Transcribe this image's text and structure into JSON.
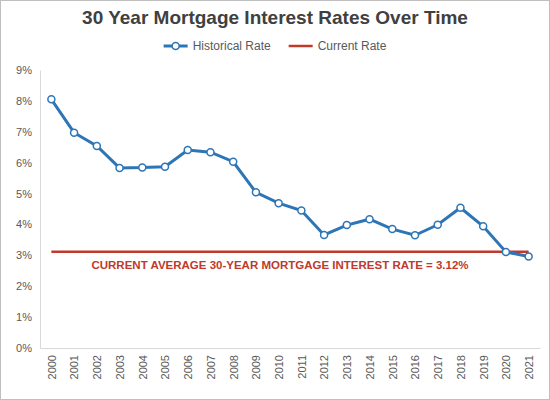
{
  "chart_data": {
    "type": "line",
    "title": "30 Year Mortgage Interest Rates Over Time",
    "categories": [
      "2000",
      "2001",
      "2002",
      "2003",
      "2004",
      "2005",
      "2006",
      "2007",
      "2008",
      "2009",
      "2010",
      "2011",
      "2012",
      "2013",
      "2014",
      "2015",
      "2016",
      "2017",
      "2018",
      "2019",
      "2020",
      "2021"
    ],
    "series": [
      {
        "name": "Historical Rate",
        "color": "#2e75b6",
        "marker": "circle",
        "line_style": "solid",
        "values": [
          8.05,
          6.97,
          6.54,
          5.83,
          5.84,
          5.87,
          6.41,
          6.34,
          6.03,
          5.04,
          4.69,
          4.45,
          3.66,
          3.98,
          4.17,
          3.85,
          3.65,
          3.99,
          4.54,
          3.94,
          3.11,
          2.96
        ]
      },
      {
        "name": "Current Rate",
        "color": "#c0392b",
        "marker": "none",
        "line_style": "solid",
        "values": [
          3.12,
          3.12,
          3.12,
          3.12,
          3.12,
          3.12,
          3.12,
          3.12,
          3.12,
          3.12,
          3.12,
          3.12,
          3.12,
          3.12,
          3.12,
          3.12,
          3.12,
          3.12,
          3.12,
          3.12,
          3.12,
          3.12
        ]
      }
    ],
    "annotation": "CURRENT AVERAGE 30-YEAR MORTGAGE INTEREST RATE = 3.12%",
    "ylim": [
      0,
      9
    ],
    "yticks": [
      {
        "value": 0,
        "label": "0%"
      },
      {
        "value": 1,
        "label": "1%"
      },
      {
        "value": 2,
        "label": "2%"
      },
      {
        "value": 3,
        "label": "3%"
      },
      {
        "value": 4,
        "label": "4%"
      },
      {
        "value": 5,
        "label": "5%"
      },
      {
        "value": 6,
        "label": "6%"
      },
      {
        "value": 7,
        "label": "7%"
      },
      {
        "value": 8,
        "label": "8%"
      },
      {
        "value": 9,
        "label": "9%"
      }
    ],
    "grid": false,
    "legend": "top"
  }
}
